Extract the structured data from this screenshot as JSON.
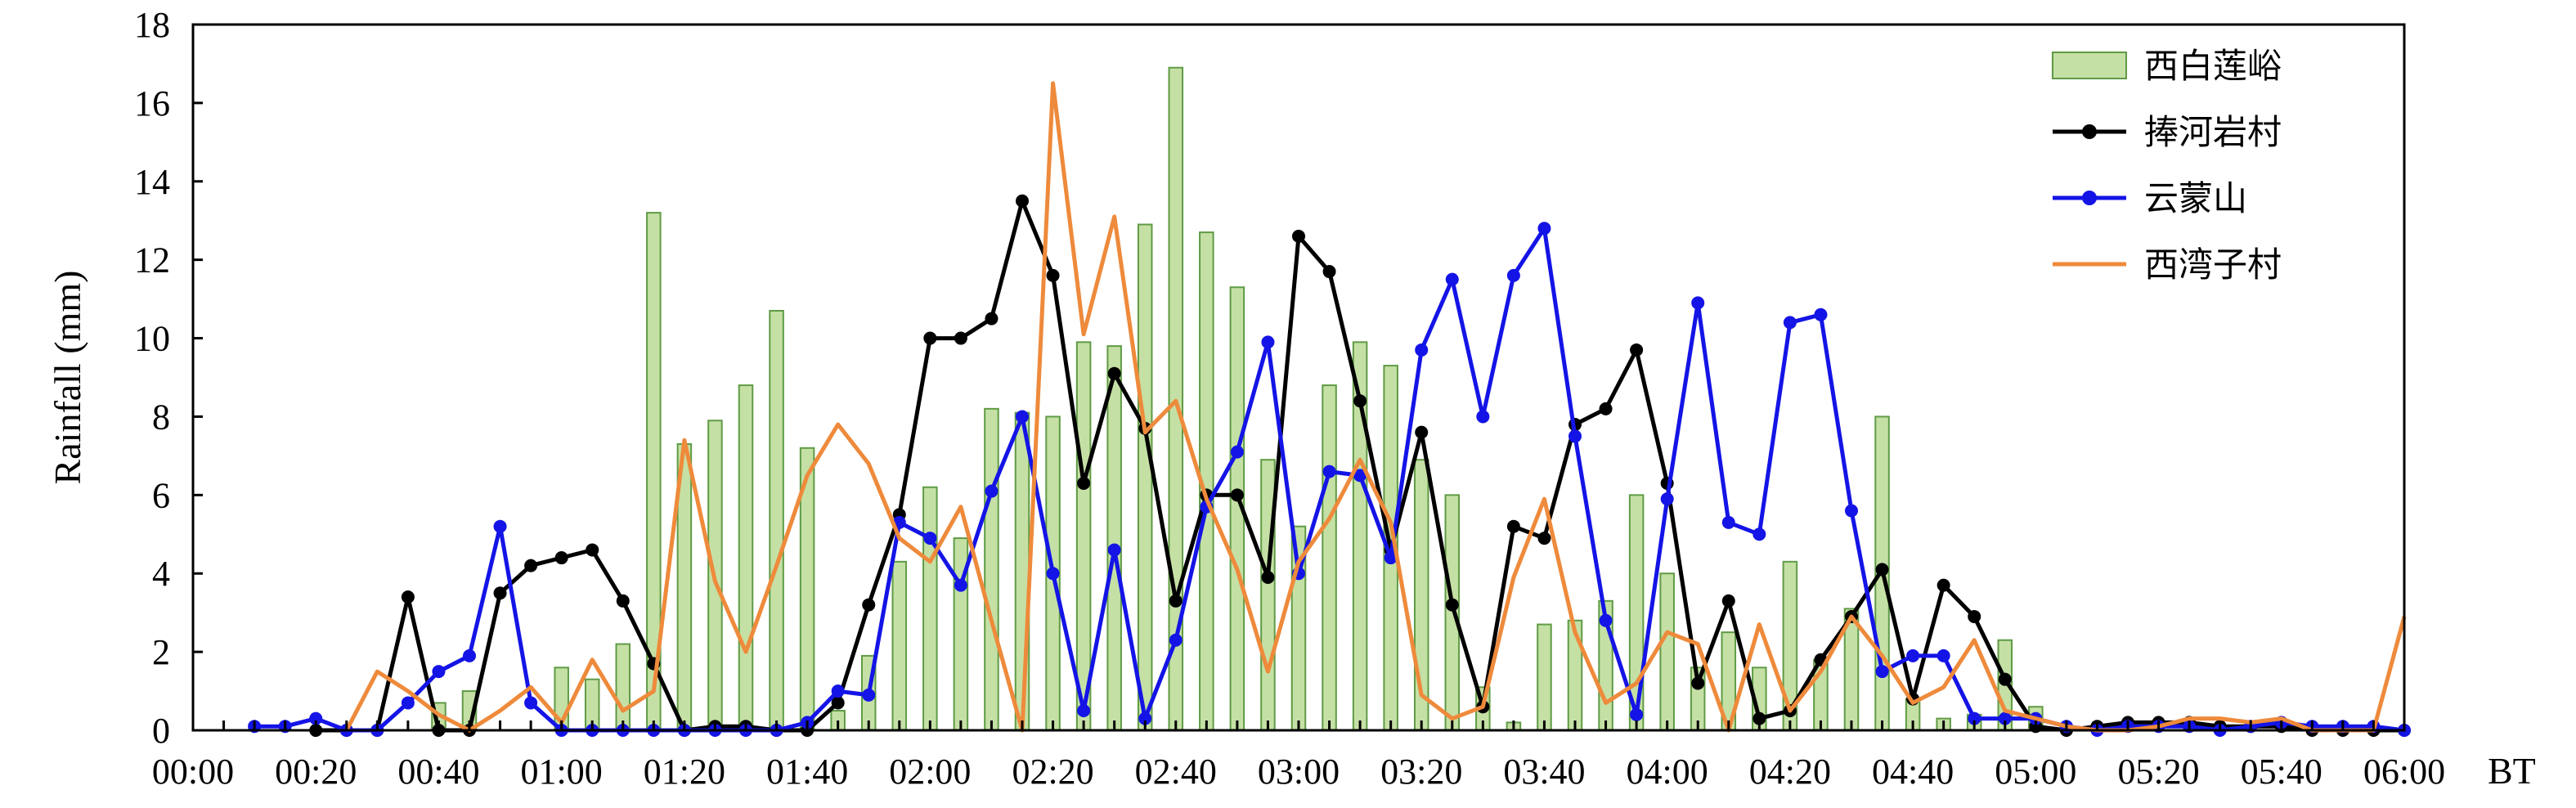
{
  "chart_data": {
    "type": "bar",
    "title": "",
    "xlabel": "BT",
    "ylabel": "Rainfall (mm)",
    "ylim": [
      0,
      18
    ],
    "yticks": [
      0,
      2,
      4,
      6,
      8,
      10,
      12,
      14,
      16,
      18
    ],
    "x_range_minutes": [
      0,
      360
    ],
    "xticks": [
      "00:00",
      "00:20",
      "00:40",
      "01:00",
      "01:20",
      "01:40",
      "02:00",
      "02:20",
      "02:40",
      "03:00",
      "03:20",
      "03:40",
      "04:00",
      "04:20",
      "04:40",
      "05:00",
      "05:20",
      "05:40",
      "06:00"
    ],
    "grid": false,
    "legend_position": "top-right",
    "bar_series": {
      "name": "西白莲峪",
      "color": "#c5e0a5",
      "edge_color": "#5f9b45",
      "x": [
        "00:05",
        "00:10",
        "00:15",
        "00:20",
        "00:25",
        "00:30",
        "00:35",
        "00:40",
        "00:45",
        "00:50",
        "00:55",
        "01:00",
        "01:05",
        "01:10",
        "01:15",
        "01:20",
        "01:25",
        "01:30",
        "01:35",
        "01:40",
        "01:45",
        "01:50",
        "01:55",
        "02:00",
        "02:05",
        "02:10",
        "02:15",
        "02:20",
        "02:25",
        "02:30",
        "02:35",
        "02:40",
        "02:45",
        "02:50",
        "02:55",
        "03:00",
        "03:05",
        "03:10",
        "03:15",
        "03:20",
        "03:25",
        "03:30",
        "03:35",
        "03:40",
        "03:45",
        "03:50",
        "03:55",
        "04:00",
        "04:05",
        "04:10",
        "04:15",
        "04:20",
        "04:25",
        "04:30",
        "04:35",
        "04:40",
        "04:45",
        "04:50",
        "04:55",
        "05:00",
        "05:05",
        "05:10",
        "05:15",
        "05:20",
        "05:25",
        "05:30",
        "05:35",
        "05:40",
        "05:45",
        "05:50",
        "05:55",
        "06:00"
      ],
      "values": [
        0,
        0,
        0,
        0,
        0,
        0,
        0,
        0.7,
        1.0,
        0,
        0,
        1.6,
        1.3,
        2.2,
        13.2,
        7.3,
        7.9,
        8.8,
        10.7,
        7.2,
        0.5,
        1.9,
        4.3,
        6.2,
        4.9,
        8.2,
        8.1,
        8.0,
        9.9,
        9.8,
        12.9,
        16.9,
        12.7,
        11.3,
        6.9,
        5.2,
        8.8,
        9.9,
        9.3,
        6.9,
        6.0,
        1.1,
        0.2,
        2.7,
        2.8,
        3.3,
        6.0,
        4.0,
        1.6,
        2.5,
        1.6,
        4.3,
        1.8,
        3.1,
        8.0,
        0.8,
        0.3,
        0.4,
        2.3,
        0.6,
        0,
        0,
        0,
        0,
        0,
        0,
        0,
        0,
        0,
        0,
        0,
        0
      ]
    },
    "series": [
      {
        "name": "捧河岩村",
        "color": "#000000",
        "marker": "circle",
        "x": [
          "00:20",
          "00:25",
          "00:30",
          "00:35",
          "00:40",
          "00:45",
          "00:50",
          "00:55",
          "01:00",
          "01:05",
          "01:10",
          "01:15",
          "01:20",
          "01:25",
          "01:30",
          "01:35",
          "01:40",
          "01:45",
          "01:50",
          "01:55",
          "02:00",
          "02:05",
          "02:10",
          "02:15",
          "02:20",
          "02:25",
          "02:30",
          "02:35",
          "02:40",
          "02:45",
          "02:50",
          "02:55",
          "03:00",
          "03:05",
          "03:10",
          "03:15",
          "03:20",
          "03:25",
          "03:30",
          "03:35",
          "03:40",
          "03:45",
          "03:50",
          "03:55",
          "04:00",
          "04:05",
          "04:10",
          "04:15",
          "04:20",
          "04:25",
          "04:30",
          "04:35",
          "04:40",
          "04:45",
          "04:50",
          "04:55",
          "05:00",
          "05:05",
          "05:10",
          "05:15",
          "05:20",
          "05:25",
          "05:30",
          "05:35",
          "05:40",
          "05:45",
          "05:50",
          "05:55",
          "06:00"
        ],
        "values": [
          0,
          0,
          0,
          3.4,
          0,
          0,
          3.5,
          4.2,
          4.4,
          4.6,
          3.3,
          1.7,
          0,
          0.1,
          0.1,
          0,
          0,
          0.7,
          3.2,
          5.5,
          10.0,
          10.0,
          10.5,
          13.5,
          11.6,
          6.3,
          9.1,
          7.7,
          3.3,
          6.0,
          6.0,
          3.9,
          12.6,
          11.7,
          8.4,
          4.6,
          7.6,
          3.2,
          0.6,
          5.2,
          4.9,
          7.8,
          8.2,
          9.7,
          6.3,
          1.2,
          3.3,
          0.3,
          0.5,
          1.8,
          2.9,
          4.1,
          0.8,
          3.7,
          2.9,
          1.3,
          0.1,
          0,
          0.1,
          0.2,
          0.2,
          0.2,
          0.1,
          0.1,
          0.1,
          0,
          0,
          0,
          0
        ]
      },
      {
        "name": "云蒙山",
        "color": "#1414e6",
        "marker": "circle",
        "x": [
          "00:10",
          "00:15",
          "00:20",
          "00:25",
          "00:30",
          "00:35",
          "00:40",
          "00:45",
          "00:50",
          "00:55",
          "01:00",
          "01:05",
          "01:10",
          "01:15",
          "01:20",
          "01:25",
          "01:30",
          "01:35",
          "01:40",
          "01:45",
          "01:50",
          "01:55",
          "02:00",
          "02:05",
          "02:10",
          "02:15",
          "02:20",
          "02:25",
          "02:30",
          "02:35",
          "02:40",
          "02:45",
          "02:50",
          "02:55",
          "03:00",
          "03:05",
          "03:10",
          "03:15",
          "03:20",
          "03:25",
          "03:30",
          "03:35",
          "03:40",
          "03:45",
          "03:50",
          "03:55",
          "04:00",
          "04:05",
          "04:10",
          "04:15",
          "04:20",
          "04:25",
          "04:30",
          "04:35",
          "04:40",
          "04:45",
          "04:50",
          "04:55",
          "05:00",
          "05:05",
          "05:10",
          "05:15",
          "05:20",
          "05:25",
          "05:30",
          "05:35",
          "05:40",
          "05:45",
          "05:50",
          "05:55",
          "06:00"
        ],
        "values": [
          0.1,
          0.1,
          0.3,
          0,
          0,
          0.7,
          1.5,
          1.9,
          5.2,
          0.7,
          0,
          0,
          0,
          0,
          0,
          0,
          0,
          0,
          0.2,
          1.0,
          0.9,
          5.3,
          4.9,
          3.7,
          6.1,
          8.0,
          4.0,
          0.5,
          4.6,
          0.3,
          2.3,
          5.7,
          7.1,
          9.9,
          4.0,
          6.6,
          6.5,
          4.4,
          9.7,
          11.5,
          8.0,
          11.6,
          12.8,
          7.5,
          2.8,
          0.4,
          5.9,
          10.9,
          5.3,
          5.0,
          10.4,
          10.6,
          5.6,
          1.5,
          1.9,
          1.9,
          0.3,
          0.3,
          0.3,
          0.1,
          0,
          0.1,
          0.1,
          0.1,
          0,
          0.1,
          0.2,
          0.1,
          0.1,
          0.1,
          0
        ]
      },
      {
        "name": "西湾子村",
        "color": "#ee8a3b",
        "marker": "none",
        "x": [
          "00:25",
          "00:30",
          "00:35",
          "00:40",
          "00:45",
          "00:50",
          "00:55",
          "01:00",
          "01:05",
          "01:10",
          "01:15",
          "01:20",
          "01:25",
          "01:30",
          "01:35",
          "01:40",
          "01:45",
          "01:50",
          "01:55",
          "02:00",
          "02:05",
          "02:10",
          "02:15",
          "02:20",
          "02:25",
          "02:30",
          "02:35",
          "02:40",
          "02:45",
          "02:50",
          "02:55",
          "03:00",
          "03:05",
          "03:10",
          "03:15",
          "03:20",
          "03:25",
          "03:30",
          "03:35",
          "03:40",
          "03:45",
          "03:50",
          "03:55",
          "04:00",
          "04:05",
          "04:10",
          "04:15",
          "04:20",
          "04:25",
          "04:30",
          "04:35",
          "04:40",
          "04:45",
          "04:50",
          "04:55",
          "05:00",
          "05:05",
          "05:10",
          "05:15",
          "05:20",
          "05:25",
          "05:30",
          "05:35",
          "05:40",
          "05:45",
          "05:50",
          "05:55",
          "06:00"
        ],
        "values": [
          0,
          1.5,
          1.0,
          0.4,
          0,
          0.5,
          1.1,
          0.2,
          1.8,
          0.5,
          1.0,
          7.4,
          3.8,
          2.0,
          4.2,
          6.5,
          7.8,
          6.8,
          4.9,
          4.3,
          5.7,
          2.8,
          0,
          16.5,
          10.1,
          13.1,
          7.6,
          8.4,
          5.9,
          4.1,
          1.5,
          4.3,
          5.4,
          6.9,
          5.3,
          0.9,
          0.3,
          0.6,
          3.9,
          5.9,
          2.5,
          0.7,
          1.2,
          2.5,
          2.2,
          0,
          2.7,
          0.5,
          1.5,
          2.9,
          1.9,
          0.7,
          1.1,
          2.3,
          0.5,
          0.3,
          0.1,
          0,
          0,
          0.1,
          0.3,
          0.3,
          0.2,
          0.3,
          0,
          0,
          0,
          2.9
        ]
      }
    ]
  }
}
